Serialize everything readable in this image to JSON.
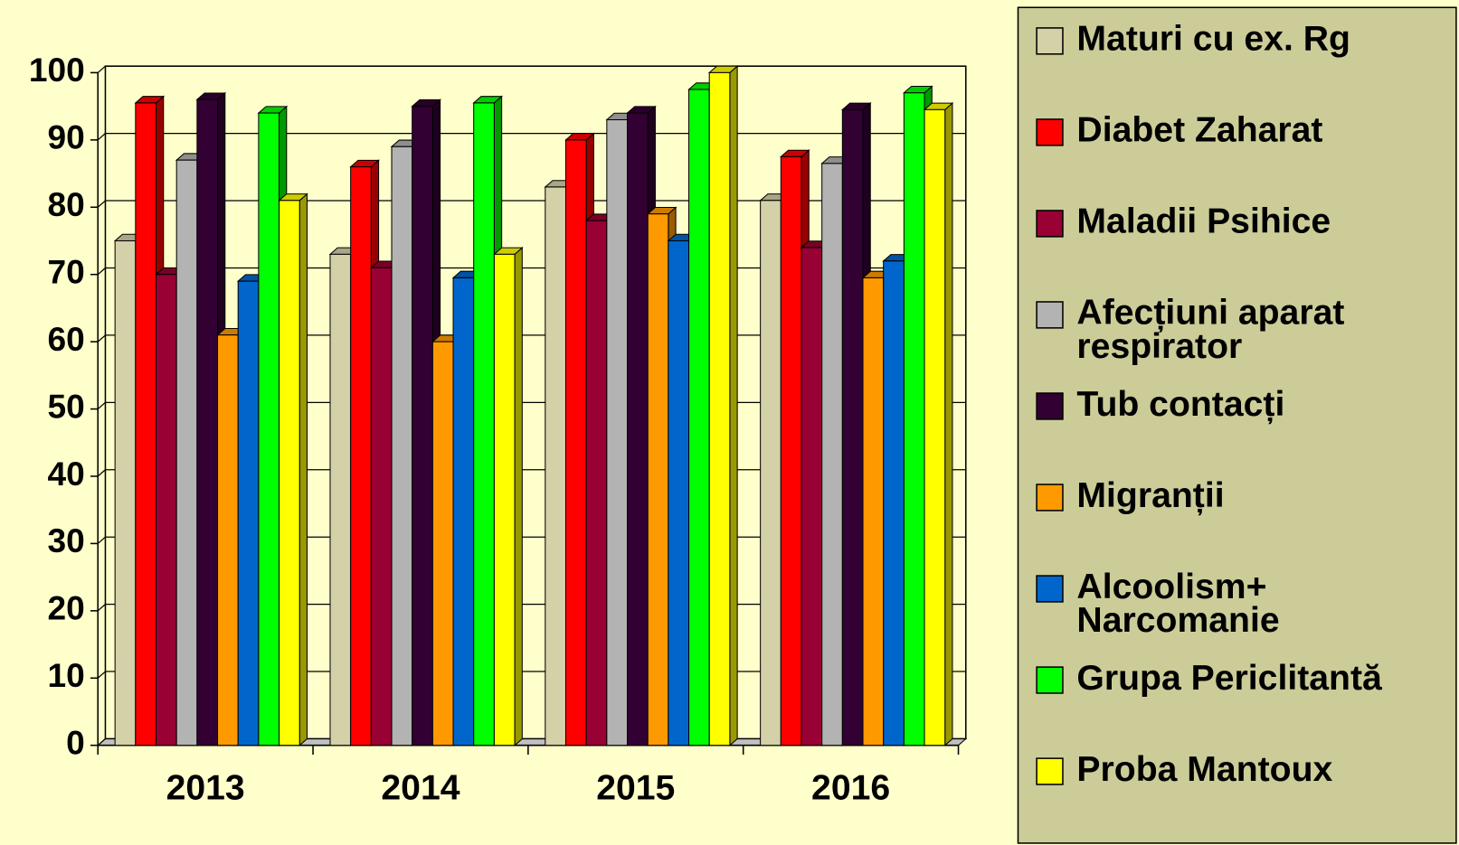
{
  "chart_data": {
    "type": "bar3d",
    "categories": [
      "2013",
      "2014",
      "2015",
      "2016"
    ],
    "series": [
      {
        "name": "Maturi cu ex. Rg",
        "color": "#d4d0a8",
        "values": [
          75,
          73,
          83,
          81
        ]
      },
      {
        "name": "Diabet Zaharat",
        "color": "#ff0000",
        "values": [
          95.5,
          86,
          90,
          87.5
        ]
      },
      {
        "name": "Maladii Psihice",
        "color": "#990033",
        "values": [
          70,
          71,
          78,
          74
        ]
      },
      {
        "name": "Afecțiuni aparat respirator",
        "color": "#b3b3b3",
        "values": [
          87,
          89,
          93,
          86.5
        ]
      },
      {
        "name": "Tub contacți",
        "color": "#330033",
        "values": [
          96,
          95,
          94,
          94.5
        ]
      },
      {
        "name": "Migranții",
        "color": "#ff9900",
        "values": [
          61,
          60,
          79,
          69.5
        ]
      },
      {
        "name": "Alcoolism+ Narcomanie",
        "color": "#0066cc",
        "values": [
          69,
          69.5,
          75,
          72
        ]
      },
      {
        "name": "Grupa Periclitantă",
        "color": "#00ff00",
        "values": [
          94,
          95.5,
          97.5,
          97
        ]
      },
      {
        "name": "Proba Mantoux",
        "color": "#ffff00",
        "values": [
          81,
          73,
          100,
          94.5
        ]
      }
    ],
    "ylim": [
      0,
      100
    ],
    "yticks": [
      0,
      10,
      20,
      30,
      40,
      50,
      60,
      70,
      80,
      90,
      100
    ],
    "grid": true,
    "legend": "right",
    "background": "#ffffcc",
    "legend_background": "#cccc99"
  }
}
